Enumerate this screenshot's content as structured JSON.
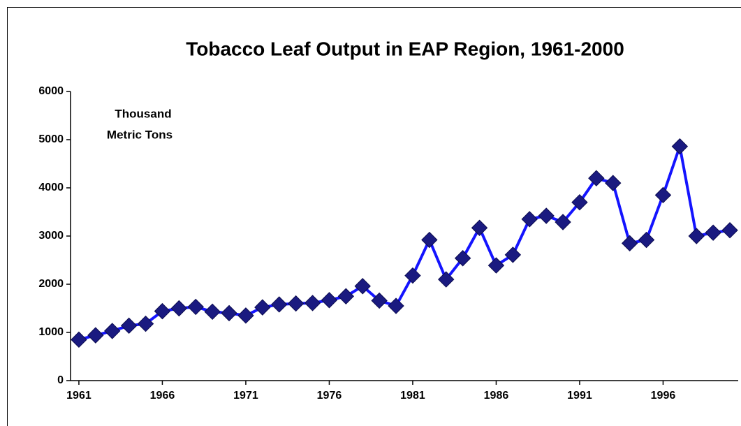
{
  "chart_data": {
    "type": "line",
    "title": "Tobacco Leaf Output in EAP Region, 1961-2000",
    "annotation": [
      "Thousand",
      "Metric Tons"
    ],
    "x": [
      1961,
      1962,
      1963,
      1964,
      1965,
      1966,
      1967,
      1968,
      1969,
      1970,
      1971,
      1972,
      1973,
      1974,
      1975,
      1976,
      1977,
      1978,
      1979,
      1980,
      1981,
      1982,
      1983,
      1984,
      1985,
      1986,
      1987,
      1988,
      1989,
      1990,
      1991,
      1992,
      1993,
      1994,
      1995,
      1996,
      1997,
      1998,
      1999,
      2000
    ],
    "values": [
      850,
      940,
      1030,
      1140,
      1180,
      1440,
      1500,
      1530,
      1430,
      1400,
      1350,
      1520,
      1580,
      1600,
      1610,
      1670,
      1750,
      1960,
      1660,
      1550,
      2180,
      2920,
      2100,
      2540,
      3170,
      2390,
      2610,
      3350,
      3420,
      3290,
      3700,
      4200,
      4100,
      2850,
      2920,
      3850,
      4860,
      3000,
      3070,
      3120
    ],
    "line_color": "#1414ff",
    "marker_color": "#1a1a80",
    "xlim": [
      1960.5,
      2000.5
    ],
    "xticks": [
      1961,
      1966,
      1971,
      1976,
      1981,
      1986,
      1991,
      1996
    ],
    "ylim": [
      0,
      6000
    ],
    "yticks": [
      0,
      1000,
      2000,
      3000,
      4000,
      5000,
      6000
    ],
    "grid": false
  }
}
